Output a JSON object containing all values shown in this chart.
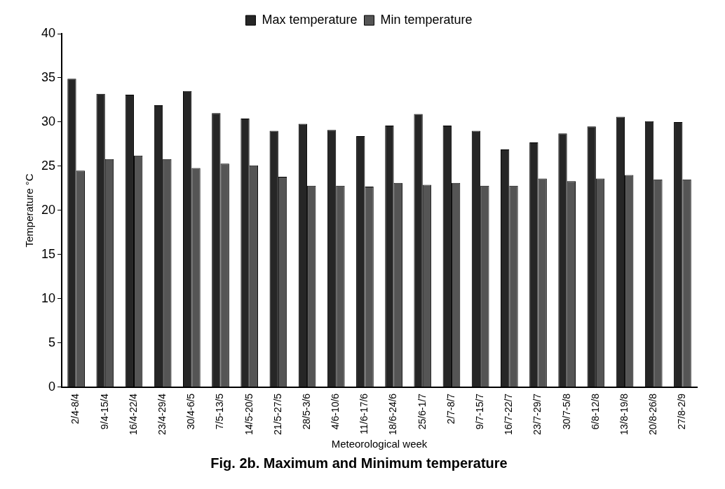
{
  "chart_data": {
    "type": "bar",
    "title": "Fig. 2b. Maximum and Minimum temperature",
    "xlabel": "Meteorological week",
    "ylabel": "Temperature °C",
    "categories": [
      "2/4-8/4",
      "9/4-15/4",
      "16/4-22/4",
      "23/4-29/4",
      "30/4-6/5",
      "7/5-13/5",
      "14/5-20/5",
      "21/5-27/5",
      "28/5-3/6",
      "4/6-10/6",
      "11/6-17/6",
      "18/6-24/6",
      "25/6-1/7",
      "2/7-8/7",
      "9/7-15/7",
      "16/7-22/7",
      "23/7-29/7",
      "30/7-5/8",
      "6/8-12/8",
      "13/8-19/8",
      "20/8-26/8",
      "27/8-2/9"
    ],
    "series": [
      {
        "name": "Max temperature",
        "color": "#262626",
        "values": [
          34.9,
          33.2,
          33.1,
          31.9,
          33.5,
          31.0,
          30.4,
          29.0,
          29.8,
          29.1,
          28.4,
          29.6,
          30.9,
          29.6,
          29.0,
          26.9,
          27.7,
          28.7,
          29.5,
          30.6,
          30.1,
          30.0
        ]
      },
      {
        "name": "Min temperature",
        "color": "#555555",
        "values": [
          24.5,
          25.8,
          26.2,
          25.8,
          24.8,
          25.3,
          25.1,
          23.8,
          22.8,
          22.8,
          22.7,
          23.1,
          22.9,
          23.1,
          22.8,
          22.8,
          23.6,
          23.3,
          23.6,
          24.0,
          23.5,
          23.5
        ]
      }
    ],
    "ylim": [
      0,
      40
    ],
    "yticks": [
      0,
      5,
      10,
      15,
      20,
      25,
      30,
      35,
      40
    ],
    "grid": false,
    "legend": "top"
  }
}
